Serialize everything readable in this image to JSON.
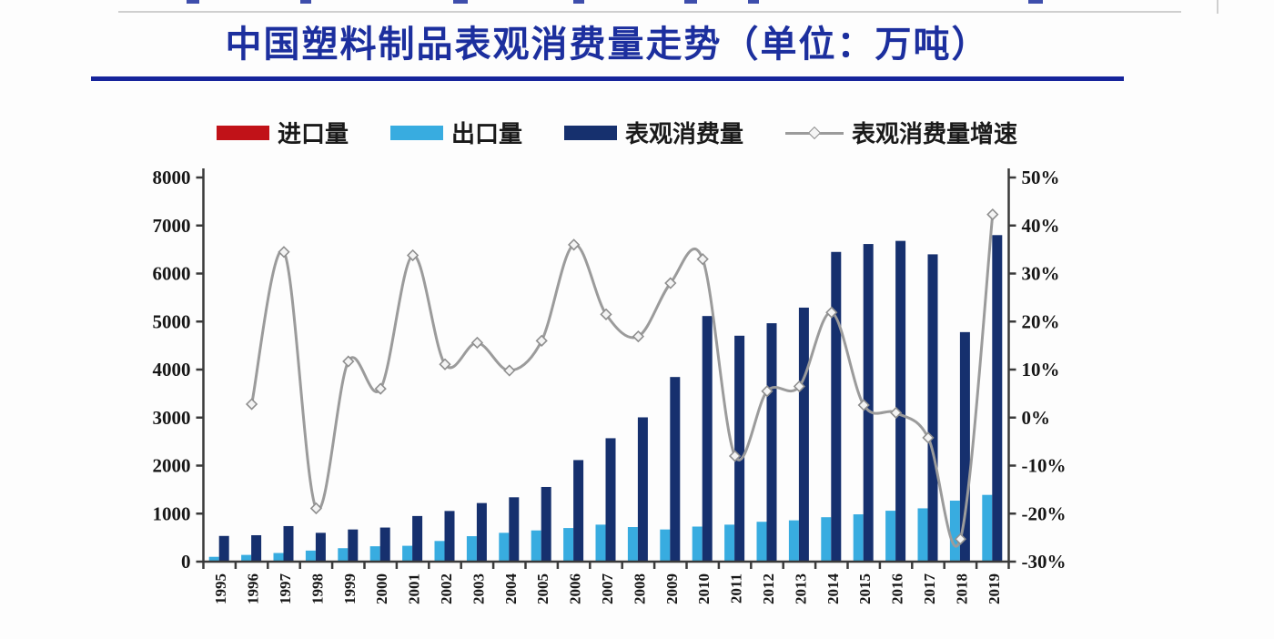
{
  "page": {
    "title": "中国塑料制品表观消费量走势（单位：万吨）",
    "title_color": "#1c2f9e"
  },
  "legend": [
    {
      "label": "进口量",
      "color": "#c11218",
      "type": "bar"
    },
    {
      "label": "出口量",
      "color": "#38ace0",
      "type": "bar"
    },
    {
      "label": "表观消费量",
      "color": "#16306e",
      "type": "bar"
    },
    {
      "label": "表观消费量增速",
      "color": "#9b9b9b",
      "type": "line"
    }
  ],
  "chart_data": {
    "type": "bar",
    "subtype": "grouped bars + smoothed line on secondary axis",
    "title": "中国塑料制品表观消费量走势（单位：万吨）",
    "categories": [
      "1995",
      "1996",
      "1997",
      "1998",
      "1999",
      "2000",
      "2001",
      "2002",
      "2003",
      "2004",
      "2005",
      "2006",
      "2007",
      "2008",
      "2009",
      "2010",
      "2011",
      "2012",
      "2013",
      "2014",
      "2015",
      "2016",
      "2017",
      "2018",
      "2019"
    ],
    "series": [
      {
        "name": "进口量",
        "type": "bar",
        "axis": "left",
        "color": "#c11218",
        "note": "bars too small to be visible in chart (≈0 at this scale)",
        "values": [
          0,
          0,
          0,
          0,
          0,
          0,
          0,
          0,
          0,
          0,
          0,
          0,
          0,
          0,
          0,
          0,
          0,
          0,
          0,
          0,
          0,
          0,
          0,
          0,
          0
        ]
      },
      {
        "name": "出口量",
        "type": "bar",
        "axis": "left",
        "color": "#38ace0",
        "values": [
          100,
          140,
          180,
          230,
          280,
          320,
          330,
          430,
          530,
          600,
          650,
          700,
          770,
          720,
          670,
          730,
          770,
          830,
          860,
          925,
          985,
          1060,
          1110,
          1270,
          1390
        ]
      },
      {
        "name": "表观消费量",
        "type": "bar",
        "axis": "left",
        "color": "#16306e",
        "values": [
          535,
          550,
          740,
          600,
          670,
          710,
          950,
          1055,
          1220,
          1340,
          1555,
          2115,
          2570,
          3005,
          3845,
          5115,
          4705,
          4965,
          5290,
          6450,
          6615,
          6680,
          6400,
          4780,
          6800
        ]
      },
      {
        "name": "表观消费量增速",
        "type": "line",
        "axis": "right",
        "unit": "%",
        "color": "#9b9b9b",
        "marker": "open-diamond",
        "values": [
          null,
          2.8,
          34.5,
          -18.9,
          11.7,
          6.0,
          33.8,
          11.1,
          15.6,
          9.8,
          16.0,
          36.0,
          21.5,
          16.9,
          28.0,
          33.0,
          -8.0,
          5.5,
          6.5,
          21.9,
          2.6,
          1.0,
          -4.2,
          -25.3,
          42.3
        ]
      }
    ],
    "left_axis": {
      "min": 0,
      "max": 8000,
      "step": 1000,
      "ticks": [
        "0",
        "1000",
        "2000",
        "3000",
        "4000",
        "5000",
        "6000",
        "7000",
        "8000"
      ]
    },
    "right_axis": {
      "min": -30,
      "max": 50,
      "step": 10,
      "ticks": [
        "-30%",
        "-20%",
        "-10%",
        "0%",
        "10%",
        "20%",
        "30%",
        "40%",
        "50%"
      ]
    },
    "x_axis": {
      "label_rotation": -90
    },
    "grid": false,
    "legend_position": "top"
  }
}
